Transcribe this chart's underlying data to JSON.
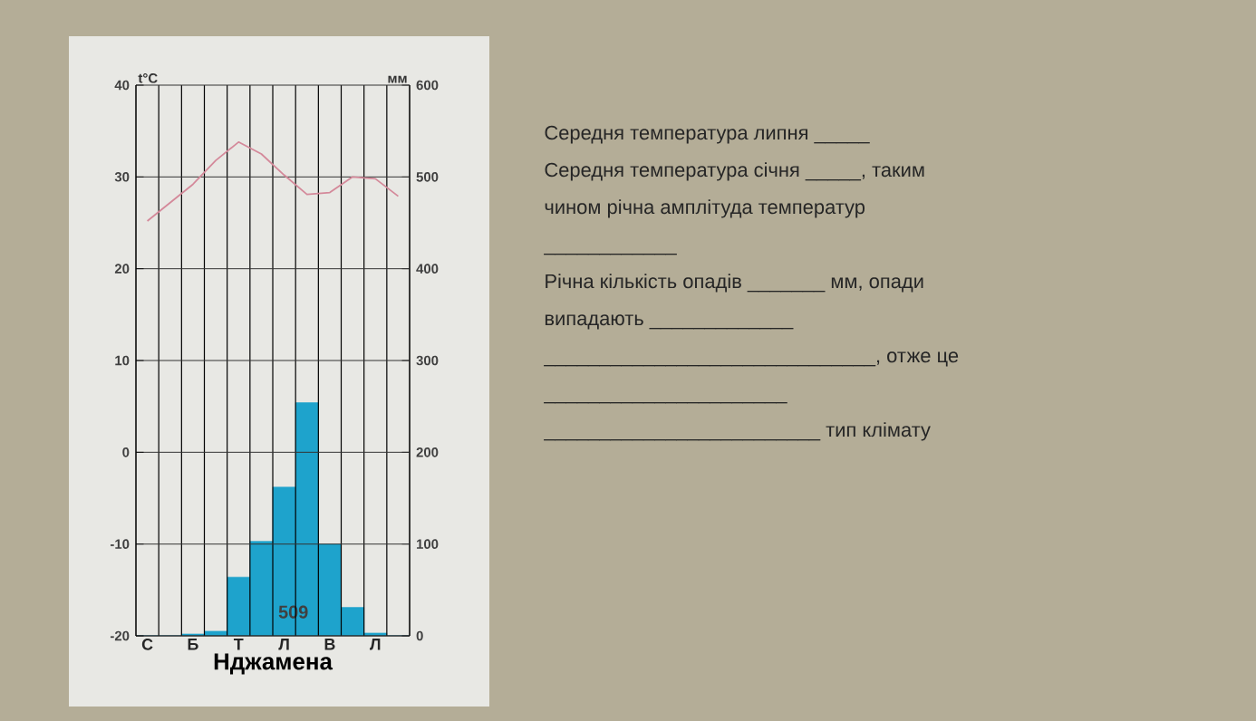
{
  "chart_data": {
    "type": "bar",
    "categories": [
      "С",
      null,
      "Б",
      null,
      "Т",
      null,
      "Л",
      null,
      "В",
      null,
      "Л",
      null
    ],
    "series": [
      {
        "axis": "y2",
        "color": "#1ea3cc",
        "values": [
          0,
          0,
          2,
          5,
          64,
          103,
          162,
          254,
          100,
          31,
          3,
          0
        ]
      },
      {
        "type": "line",
        "axis": "y",
        "color": "#d4899a",
        "values": [
          25.2,
          27.2,
          29.2,
          31.8,
          33.8,
          32.5,
          30.2,
          28.1,
          28.3,
          30.0,
          29.8,
          27.9
        ]
      }
    ],
    "ylim": [
      -20,
      40
    ],
    "yticks": [
      -20,
      -10,
      0,
      10,
      20,
      30,
      40
    ],
    "y2lim": [
      0,
      600
    ],
    "y2ticks": [
      0,
      100,
      200,
      300,
      400,
      500,
      600
    ],
    "ylabel": "t°C",
    "y2label": "мм",
    "xlabel": "Нджамена",
    "grid": true,
    "annotations": [
      "509",
      "Середня температура липня _____",
      "Середня температура січня _____, таким",
      "чином річна амплітуда температур",
      "____________",
      "Річна кількість опадів _______ мм, опади",
      "випадають _____________",
      "______________________________, отже це",
      "______________________",
      "_________________________ тип клімату"
    ]
  }
}
